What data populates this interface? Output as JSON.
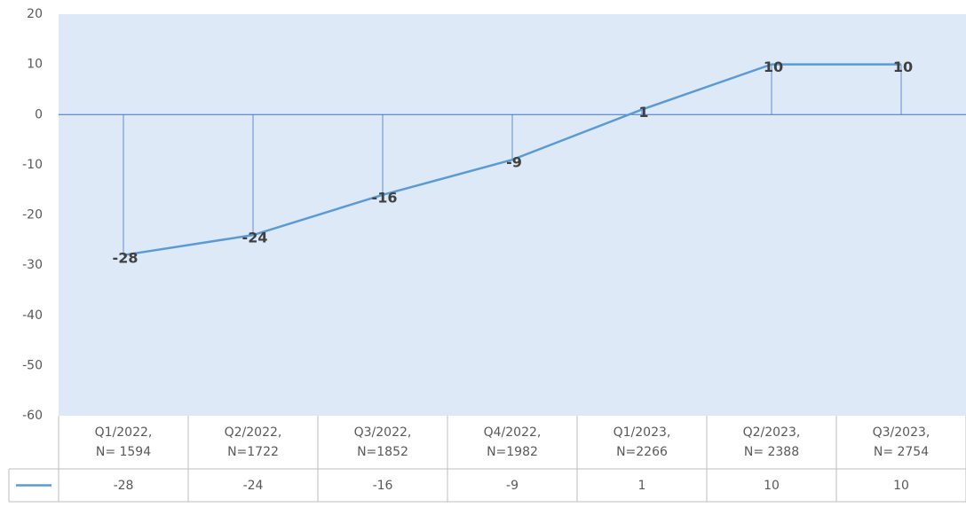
{
  "chart_data": {
    "type": "line",
    "categories": [
      "Q1/2022,\nN= 1594",
      "Q2/2022,\nN=1722",
      "Q3/2022,\nN=1852",
      "Q4/2022,\nN=1982",
      "Q1/2023,\nN=2266",
      "Q2/2023,\nN= 2388",
      "Q3/2023,\nN= 2754"
    ],
    "series": [
      {
        "color": "#5b9bd5",
        "values": [
          -28,
          -24,
          -16,
          -9,
          1,
          10,
          10
        ]
      }
    ],
    "ylim": [
      -60,
      20
    ],
    "yticks": [
      -60,
      -50,
      -40,
      -30,
      -20,
      -10,
      0,
      10,
      20
    ],
    "grid": false,
    "drop_lines": true,
    "data_table": true,
    "plot_background": "#dde9f6"
  }
}
